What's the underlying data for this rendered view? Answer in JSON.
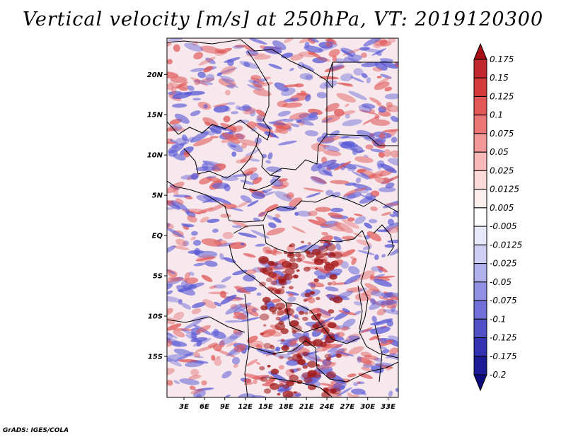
{
  "title": "Vertical velocity [m/s] at 250hPa, VT: 2019120300",
  "credit": "GrADS: IGES/COLA",
  "map": {
    "lat_labels": [
      "20N",
      "15N",
      "10N",
      "5N",
      "EQ",
      "5S",
      "10S",
      "15S"
    ],
    "lon_labels": [
      "3E",
      "6E",
      "9E",
      "12E",
      "15E",
      "18E",
      "21E",
      "24E",
      "27E",
      "30E",
      "33E"
    ]
  },
  "colorbar": {
    "labels": [
      "0.175",
      "0.15",
      "0.125",
      "0.1",
      "0.075",
      "0.05",
      "0.025",
      "0.0125",
      "0.005",
      "-0.005",
      "-0.0125",
      "-0.025",
      "-0.05",
      "-0.075",
      "-0.1",
      "-0.125",
      "-0.175",
      "-0.2"
    ],
    "colors": [
      "#a50f15",
      "#c1272d",
      "#d63b3b",
      "#e45757",
      "#ec7676",
      "#f39898",
      "#f8b9b9",
      "#fbd9d9",
      "#fdeeee",
      "#ffffff",
      "#e8e8fb",
      "#cfcff5",
      "#b1b1ee",
      "#9191e4",
      "#7070d8",
      "#5050c7",
      "#3232b2",
      "#1c1c96",
      "#0c0c7a"
    ]
  },
  "field": {
    "positive_color": "#e05858",
    "negative_color": "#5a5ad6",
    "strong_positive_color": "#a01818",
    "background_color": "#f6e8ec"
  }
}
